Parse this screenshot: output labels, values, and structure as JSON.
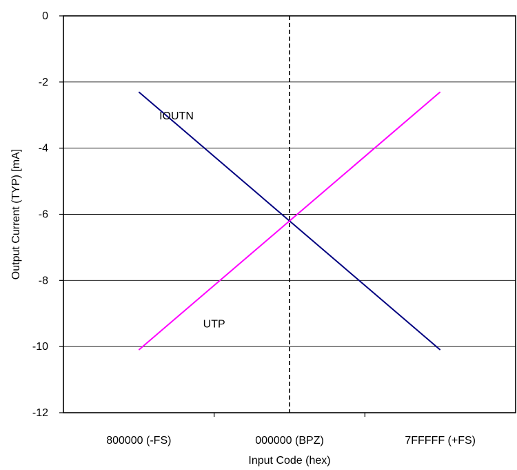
{
  "chart_data": {
    "type": "line",
    "title": "",
    "xlabel": "Input Code (hex)",
    "ylabel": "Output Current (TYP) [mA]",
    "xlim": [
      -1.5,
      1.5
    ],
    "ylim": [
      -12,
      0
    ],
    "x_tick_labels": [
      {
        "x": -1,
        "label": "800000 (-FS)"
      },
      {
        "x": 0,
        "label": "000000 (BPZ)"
      },
      {
        "x": 1,
        "label": "7FFFFF (+FS)"
      }
    ],
    "x_minor_ticks": [
      -0.5,
      0.5
    ],
    "y_ticks": [
      {
        "y": 0,
        "label": "0"
      },
      {
        "y": -2,
        "label": "-2"
      },
      {
        "y": -4,
        "label": "-4"
      },
      {
        "y": -6,
        "label": "-6"
      },
      {
        "y": -8,
        "label": "-8"
      },
      {
        "y": -10,
        "label": "-10"
      },
      {
        "y": -12,
        "label": "-12"
      }
    ],
    "grid": "horizontal",
    "reference_line": {
      "x": 0,
      "style": "dashed"
    },
    "series": [
      {
        "name": "IOUTN",
        "color": "#000080",
        "x": [
          -1,
          1
        ],
        "y": [
          -2.3,
          -10.1
        ],
        "label_at": {
          "x": -0.75,
          "y": -3.0
        }
      },
      {
        "name": "UTP",
        "color": "#ff00ff",
        "x": [
          -1,
          1
        ],
        "y": [
          -10.1,
          -2.3
        ],
        "label_at": {
          "x": -0.5,
          "y": -9.3
        }
      }
    ]
  }
}
